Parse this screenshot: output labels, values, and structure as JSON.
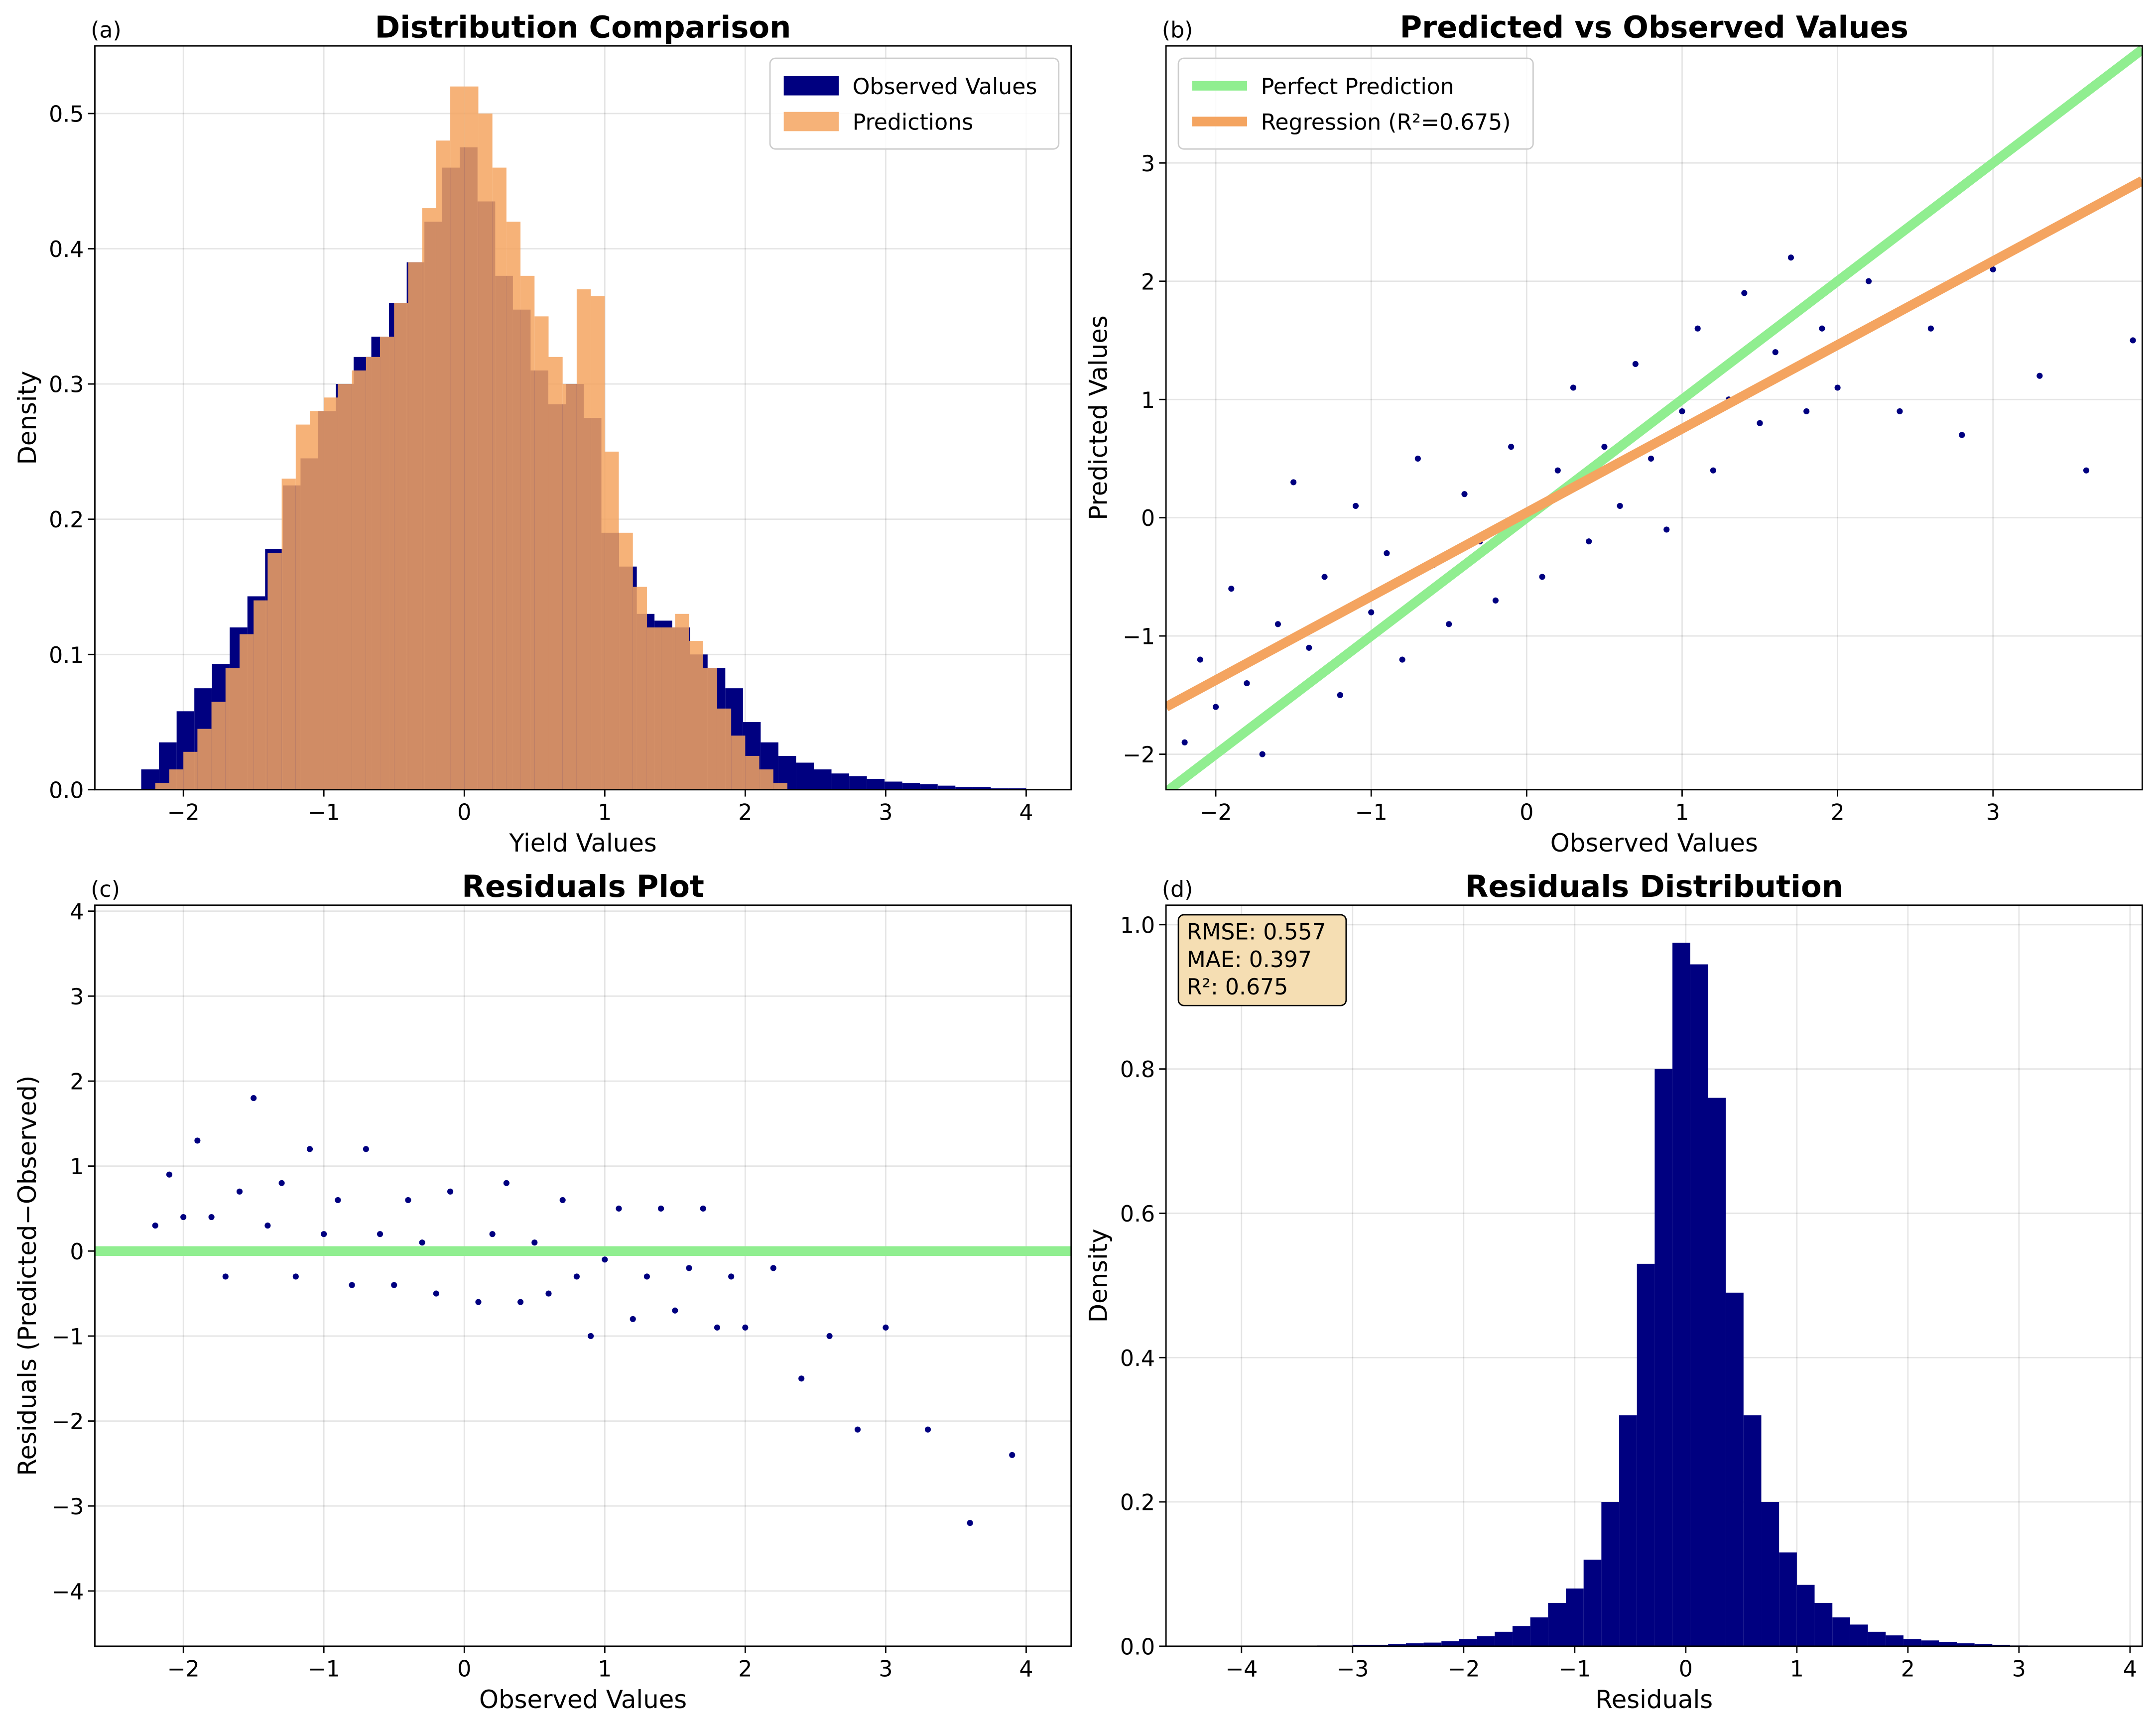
{
  "chart_data": [
    {
      "type": "histogram",
      "label": "(a)",
      "title": "Distribution Comparison",
      "xlabel": "Yield Values",
      "ylabel": "Density",
      "xlim": [
        -2.63,
        4.32
      ],
      "ylim": [
        0,
        0.55
      ],
      "xticks": [
        {
          "value": -2,
          "label": "−2"
        },
        {
          "value": -1,
          "label": "−1"
        },
        0,
        1,
        2,
        3,
        4
      ],
      "yticks": [
        {
          "value": 0,
          "label": "0.0"
        },
        0.1,
        0.2,
        0.3,
        0.4,
        0.5
      ],
      "grid": true,
      "legend": "upper right",
      "series": [
        {
          "name": "Observed Values",
          "color": "#000080",
          "opacity": 1,
          "bins": [
            -2.3,
            -2.174,
            -2.048,
            -1.922,
            -1.796,
            -1.67,
            -1.544,
            -1.418,
            -1.292,
            -1.166,
            -1.04,
            -0.914,
            -0.788,
            -0.662,
            -0.536,
            -0.41,
            -0.284,
            -0.158,
            -0.032,
            0.094,
            0.22,
            0.346,
            0.472,
            0.598,
            0.724,
            0.85,
            0.976,
            1.102,
            1.228,
            1.354,
            1.48,
            1.606,
            1.732,
            1.858,
            1.984,
            2.11,
            2.236,
            2.362,
            2.488,
            2.614,
            2.74,
            2.866,
            2.992,
            3.118,
            3.244,
            3.37,
            3.496,
            3.622,
            3.748,
            3.874,
            4.0
          ],
          "values": [
            0.015,
            0.035,
            0.058,
            0.075,
            0.093,
            0.12,
            0.143,
            0.178,
            0.225,
            0.245,
            0.28,
            0.3,
            0.32,
            0.335,
            0.36,
            0.39,
            0.42,
            0.46,
            0.475,
            0.435,
            0.38,
            0.355,
            0.31,
            0.285,
            0.3,
            0.275,
            0.19,
            0.165,
            0.13,
            0.125,
            0.12,
            0.1,
            0.09,
            0.075,
            0.05,
            0.035,
            0.025,
            0.02,
            0.015,
            0.012,
            0.01,
            0.008,
            0.006,
            0.005,
            0.004,
            0.003,
            0.002,
            0.002,
            0.001,
            0.001
          ]
        },
        {
          "name": "Predictions",
          "color": "#f4a460",
          "opacity": 0.85,
          "bins": [
            -2.2,
            -2.1,
            -2.0,
            -1.9,
            -1.8,
            -1.7,
            -1.6,
            -1.5,
            -1.4,
            -1.3,
            -1.2,
            -1.1,
            -1.0,
            -0.9,
            -0.8,
            -0.7,
            -0.6,
            -0.5,
            -0.4,
            -0.3,
            -0.2,
            -0.1,
            0.0,
            0.1,
            0.2,
            0.3,
            0.4,
            0.5,
            0.6,
            0.7,
            0.8,
            0.9,
            1.0,
            1.1,
            1.2,
            1.3,
            1.4,
            1.5,
            1.6,
            1.7,
            1.8,
            1.9,
            2.0,
            2.1,
            2.2,
            2.3
          ],
          "values": [
            0.005,
            0.015,
            0.028,
            0.045,
            0.065,
            0.09,
            0.115,
            0.14,
            0.175,
            0.23,
            0.27,
            0.28,
            0.29,
            0.3,
            0.31,
            0.32,
            0.335,
            0.36,
            0.39,
            0.43,
            0.48,
            0.52,
            0.52,
            0.5,
            0.46,
            0.42,
            0.38,
            0.35,
            0.32,
            0.3,
            0.37,
            0.365,
            0.25,
            0.19,
            0.15,
            0.12,
            0.12,
            0.13,
            0.11,
            0.09,
            0.06,
            0.04,
            0.025,
            0.015,
            0.005
          ]
        }
      ]
    },
    {
      "type": "scatter",
      "label": "(b)",
      "title": "Predicted vs Observed Values",
      "xlabel": "Observed Values",
      "ylabel": "Predicted Values",
      "xlim": [
        -2.32,
        3.96
      ],
      "ylim": [
        -2.3,
        3.99
      ],
      "xticks": [
        {
          "value": -2,
          "label": "−2"
        },
        {
          "value": -1,
          "label": "−1"
        },
        0,
        1,
        2,
        3
      ],
      "yticks": [
        {
          "value": -2,
          "label": "−2"
        },
        {
          "value": -1,
          "label": "−1"
        },
        0,
        1,
        2,
        3
      ],
      "grid": true,
      "legend": "upper left",
      "series": [
        {
          "color": "#000080",
          "x": [
            -2.2,
            -2.1,
            -2.0,
            -1.9,
            -1.8,
            -1.7,
            -1.6,
            -1.5,
            -1.4,
            -1.3,
            -1.2,
            -1.1,
            -1.0,
            -0.9,
            -0.8,
            -0.7,
            -0.6,
            -0.5,
            -0.4,
            -0.3,
            -0.2,
            -0.1,
            0.0,
            0.1,
            0.2,
            0.3,
            0.4,
            0.5,
            0.6,
            0.7,
            0.8,
            0.9,
            1.0,
            1.1,
            1.2,
            1.3,
            1.4,
            1.5,
            1.6,
            1.7,
            1.8,
            1.9,
            2.0,
            2.2,
            2.4,
            2.6,
            2.8,
            3.0,
            3.3,
            3.6,
            3.9
          ],
          "values": [
            -1.9,
            -1.2,
            -1.6,
            -0.6,
            -1.4,
            -2.0,
            -0.9,
            0.3,
            -1.1,
            -0.5,
            -1.5,
            0.1,
            -0.8,
            -0.3,
            -1.2,
            0.5,
            -0.4,
            -0.9,
            0.2,
            -0.2,
            -0.7,
            0.6,
            0.0,
            -0.5,
            0.4,
            1.1,
            -0.2,
            0.6,
            0.1,
            1.3,
            0.5,
            -0.1,
            0.9,
            1.6,
            0.4,
            1.0,
            1.9,
            0.8,
            1.4,
            2.2,
            0.9,
            1.6,
            1.1,
            2.0,
            0.9,
            1.6,
            0.7,
            2.1,
            1.2,
            0.4,
            1.5
          ]
        },
        {
          "name": "Perfect Prediction",
          "type": "line",
          "color": "#90ee90",
          "x": [
            -2.32,
            3.96
          ],
          "values": [
            -2.32,
            3.96
          ]
        },
        {
          "name": "Regression (R²=0.675)",
          "type": "line",
          "color": "#f4a460",
          "x": [
            -2.32,
            3.96
          ],
          "values": [
            -1.6,
            2.85
          ]
        }
      ]
    },
    {
      "type": "scatter",
      "label": "(c)",
      "title": "Residuals Plot",
      "xlabel": "Observed Values",
      "ylabel": "Residuals (Predicted−Observed)",
      "xlim": [
        -2.63,
        4.32
      ],
      "ylim": [
        -4.65,
        4.07
      ],
      "xticks": [
        {
          "value": -2,
          "label": "−2"
        },
        {
          "value": -1,
          "label": "−1"
        },
        0,
        1,
        2,
        3,
        4
      ],
      "yticks": [
        {
          "value": -4,
          "label": "−4"
        },
        {
          "value": -3,
          "label": "−3"
        },
        {
          "value": -2,
          "label": "−2"
        },
        {
          "value": -1,
          "label": "−1"
        },
        0,
        1,
        2,
        3,
        4
      ],
      "grid": true,
      "hline": {
        "value": 0,
        "color": "#90ee90"
      },
      "series": [
        {
          "color": "#000080",
          "x": [
            -2.2,
            -2.1,
            -2.0,
            -1.9,
            -1.8,
            -1.7,
            -1.6,
            -1.5,
            -1.4,
            -1.3,
            -1.2,
            -1.1,
            -1.0,
            -0.9,
            -0.8,
            -0.7,
            -0.6,
            -0.5,
            -0.4,
            -0.3,
            -0.2,
            -0.1,
            0.0,
            0.1,
            0.2,
            0.3,
            0.4,
            0.5,
            0.6,
            0.7,
            0.8,
            0.9,
            1.0,
            1.1,
            1.2,
            1.3,
            1.4,
            1.5,
            1.6,
            1.7,
            1.8,
            1.9,
            2.0,
            2.2,
            2.4,
            2.6,
            2.8,
            3.0,
            3.3,
            3.6,
            3.9
          ],
          "values": [
            0.3,
            0.9,
            0.4,
            1.3,
            0.4,
            -0.3,
            0.7,
            1.8,
            0.3,
            0.8,
            -0.3,
            1.2,
            0.2,
            0.6,
            -0.4,
            1.2,
            0.2,
            -0.4,
            0.6,
            0.1,
            -0.5,
            0.7,
            0.0,
            -0.6,
            0.2,
            0.8,
            -0.6,
            0.1,
            -0.5,
            0.6,
            -0.3,
            -1.0,
            -0.1,
            0.5,
            -0.8,
            -0.3,
            0.5,
            -0.7,
            -0.2,
            0.5,
            -0.9,
            -0.3,
            -0.9,
            -0.2,
            -1.5,
            -1.0,
            -2.1,
            -0.9,
            -2.1,
            -3.2,
            -2.4
          ]
        }
      ]
    },
    {
      "type": "histogram",
      "label": "(d)",
      "title": "Residuals Distribution",
      "xlabel": "Residuals",
      "ylabel": "Density",
      "xlim": [
        -4.68,
        4.11
      ],
      "ylim": [
        0,
        1.027
      ],
      "xticks": [
        {
          "value": -4,
          "label": "−4"
        },
        {
          "value": -3,
          "label": "−3"
        },
        {
          "value": -2,
          "label": "−2"
        },
        {
          "value": -1,
          "label": "−1"
        },
        0,
        1,
        2,
        3,
        4
      ],
      "yticks": [
        {
          "value": 0,
          "label": "0.0"
        },
        0.2,
        0.4,
        0.6,
        0.8,
        {
          "value": 1,
          "label": "1.0"
        }
      ],
      "grid": true,
      "annotation": [
        "RMSE: 0.557",
        "MAE: 0.397",
        "R²: 0.675"
      ],
      "series": [
        {
          "color": "#000080",
          "opacity": 1,
          "bins": [
            -4.44,
            -4.28,
            -4.12,
            -3.96,
            -3.8,
            -3.64,
            -3.48,
            -3.32,
            -3.16,
            -3.0,
            -2.84,
            -2.68,
            -2.52,
            -2.36,
            -2.2,
            -2.04,
            -1.88,
            -1.72,
            -1.56,
            -1.4,
            -1.24,
            -1.08,
            -0.92,
            -0.76,
            -0.6,
            -0.44,
            -0.28,
            -0.12,
            0.04,
            0.2,
            0.36,
            0.52,
            0.68,
            0.84,
            1.0,
            1.16,
            1.32,
            1.48,
            1.64,
            1.8,
            1.96,
            2.12,
            2.28,
            2.44,
            2.6,
            2.76,
            2.92,
            3.08,
            3.24,
            3.4,
            3.56,
            3.72,
            3.88
          ],
          "values": [
            0,
            0,
            0,
            0,
            0,
            0,
            0.0005,
            0.001,
            0.001,
            0.002,
            0.002,
            0.003,
            0.004,
            0.005,
            0.007,
            0.01,
            0.014,
            0.02,
            0.028,
            0.04,
            0.06,
            0.08,
            0.12,
            0.2,
            0.32,
            0.53,
            0.8,
            0.975,
            0.945,
            0.76,
            0.49,
            0.32,
            0.2,
            0.13,
            0.085,
            0.06,
            0.04,
            0.03,
            0.02,
            0.015,
            0.01,
            0.008,
            0.006,
            0.004,
            0.003,
            0.002,
            0.001,
            0.0005,
            0,
            0,
            0,
            0
          ]
        }
      ]
    }
  ]
}
